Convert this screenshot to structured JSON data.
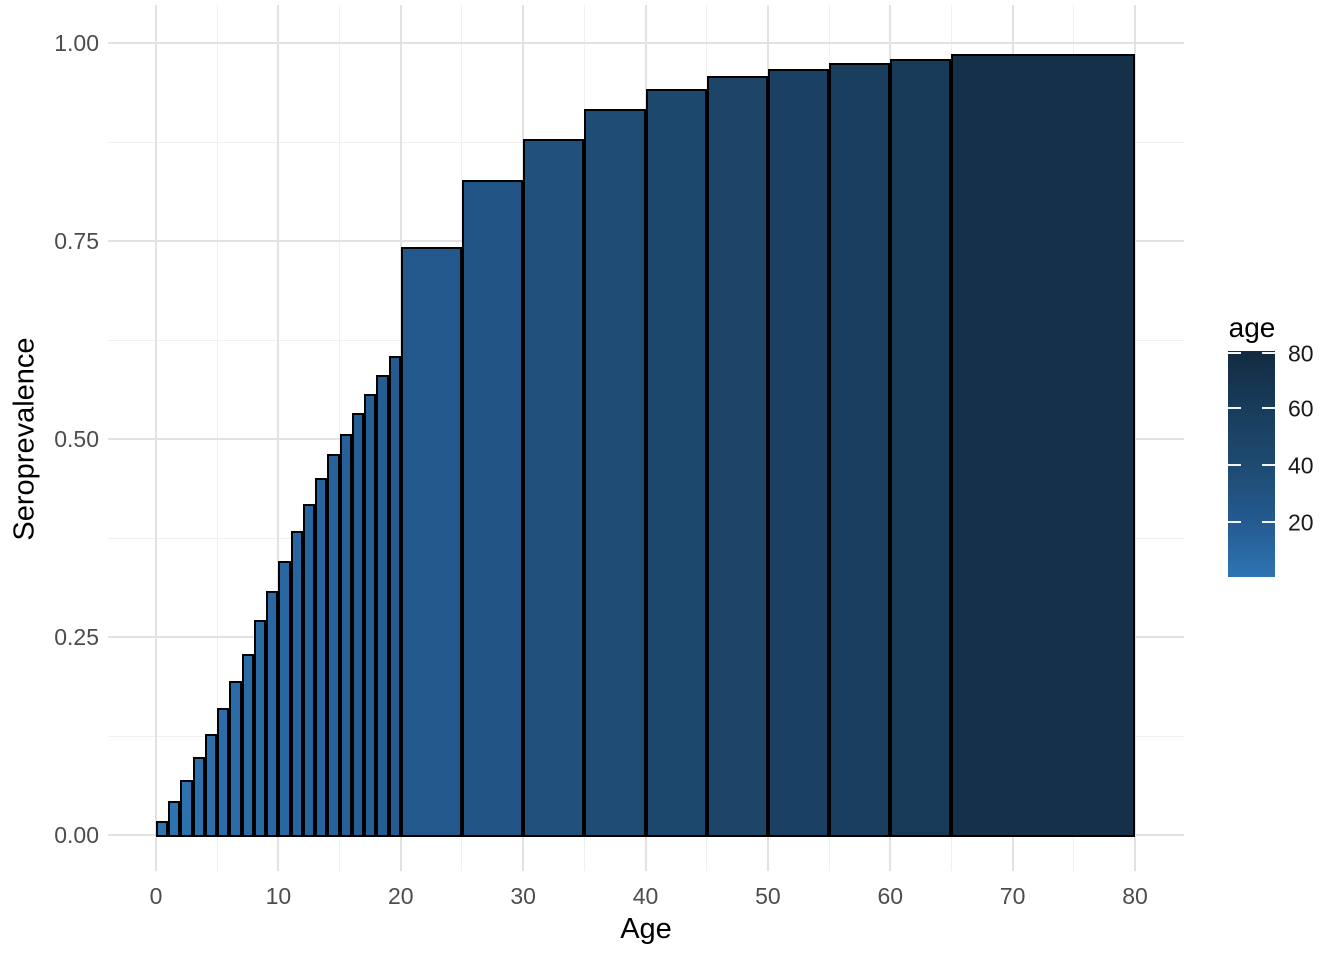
{
  "chart_data": {
    "type": "bar",
    "title": "",
    "xlabel": "Age",
    "ylabel": "Seroprevalence",
    "xlim": [
      0,
      80
    ],
    "ylim": [
      0.0,
      1.0
    ],
    "grid": true,
    "background": "#ffffff",
    "grid_major_color": "#e2e2e2",
    "grid_minor_color": "#f0f0f0",
    "bar_stroke_color": "#000000",
    "axis_text_color": "#4d4d4d",
    "axis_title_color": "#000000",
    "x_major_ticks": [
      {
        "value": 0,
        "label": "0"
      },
      {
        "value": 10,
        "label": "10"
      },
      {
        "value": 20,
        "label": "20"
      },
      {
        "value": 30,
        "label": "30"
      },
      {
        "value": 40,
        "label": "40"
      },
      {
        "value": 50,
        "label": "50"
      },
      {
        "value": 60,
        "label": "60"
      },
      {
        "value": 70,
        "label": "70"
      },
      {
        "value": 80,
        "label": "80"
      }
    ],
    "x_minor_ticks": [
      5,
      15,
      25,
      35,
      45,
      55,
      65,
      75
    ],
    "y_major_ticks": [
      {
        "value": 0.0,
        "label": "0.00"
      },
      {
        "value": 0.25,
        "label": "0.25"
      },
      {
        "value": 0.5,
        "label": "0.50"
      },
      {
        "value": 0.75,
        "label": "0.75"
      },
      {
        "value": 1.0,
        "label": "1.00"
      }
    ],
    "y_minor_ticks": [
      0.125,
      0.375,
      0.625,
      0.875
    ],
    "bars": [
      {
        "from": 0,
        "to": 1,
        "mid": 0.5,
        "value": 0.017
      },
      {
        "from": 1,
        "to": 2,
        "mid": 1.5,
        "value": 0.042
      },
      {
        "from": 2,
        "to": 3,
        "mid": 2.5,
        "value": 0.068
      },
      {
        "from": 3,
        "to": 4,
        "mid": 3.5,
        "value": 0.097
      },
      {
        "from": 4,
        "to": 5,
        "mid": 4.5,
        "value": 0.126
      },
      {
        "from": 5,
        "to": 6,
        "mid": 5.5,
        "value": 0.159
      },
      {
        "from": 6,
        "to": 7,
        "mid": 6.5,
        "value": 0.193
      },
      {
        "from": 7,
        "to": 8,
        "mid": 7.5,
        "value": 0.227
      },
      {
        "from": 8,
        "to": 9,
        "mid": 8.5,
        "value": 0.27
      },
      {
        "from": 9,
        "to": 10,
        "mid": 9.5,
        "value": 0.307
      },
      {
        "from": 10,
        "to": 11,
        "mid": 10.5,
        "value": 0.345
      },
      {
        "from": 11,
        "to": 12,
        "mid": 11.5,
        "value": 0.382
      },
      {
        "from": 12,
        "to": 13,
        "mid": 12.5,
        "value": 0.417
      },
      {
        "from": 13,
        "to": 14,
        "mid": 13.5,
        "value": 0.449
      },
      {
        "from": 14,
        "to": 15,
        "mid": 14.5,
        "value": 0.48
      },
      {
        "from": 15,
        "to": 16,
        "mid": 15.5,
        "value": 0.505
      },
      {
        "from": 16,
        "to": 17,
        "mid": 16.5,
        "value": 0.531
      },
      {
        "from": 17,
        "to": 18,
        "mid": 17.5,
        "value": 0.556
      },
      {
        "from": 18,
        "to": 19,
        "mid": 18.5,
        "value": 0.58
      },
      {
        "from": 19,
        "to": 20,
        "mid": 19.5,
        "value": 0.604
      },
      {
        "from": 20,
        "to": 25,
        "mid": 22.5,
        "value": 0.741
      },
      {
        "from": 25,
        "to": 30,
        "mid": 27.5,
        "value": 0.826
      },
      {
        "from": 30,
        "to": 35,
        "mid": 32.5,
        "value": 0.878
      },
      {
        "from": 35,
        "to": 40,
        "mid": 37.5,
        "value": 0.915
      },
      {
        "from": 40,
        "to": 45,
        "mid": 42.5,
        "value": 0.941
      },
      {
        "from": 45,
        "to": 50,
        "mid": 47.5,
        "value": 0.957
      },
      {
        "from": 50,
        "to": 55,
        "mid": 52.5,
        "value": 0.966
      },
      {
        "from": 55,
        "to": 60,
        "mid": 57.5,
        "value": 0.973
      },
      {
        "from": 60,
        "to": 65,
        "mid": 62.5,
        "value": 0.978
      },
      {
        "from": 65,
        "to": 80,
        "mid": 72.5,
        "value": 0.985
      }
    ],
    "legend": {
      "title": "age",
      "position": "right",
      "limits": [
        0.5,
        80
      ],
      "ticks": [
        {
          "value": 20,
          "label": "20"
        },
        {
          "value": 40,
          "label": "40"
        },
        {
          "value": 60,
          "label": "60"
        },
        {
          "value": 80,
          "label": "80"
        }
      ],
      "gradient_stops": [
        {
          "t": 0.0,
          "color": "#2E74B2"
        },
        {
          "t": 0.25,
          "color": "#245A90"
        },
        {
          "t": 0.5,
          "color": "#1E4A70"
        },
        {
          "t": 0.75,
          "color": "#183C5B"
        },
        {
          "t": 1.0,
          "color": "#132A3F"
        }
      ]
    }
  }
}
